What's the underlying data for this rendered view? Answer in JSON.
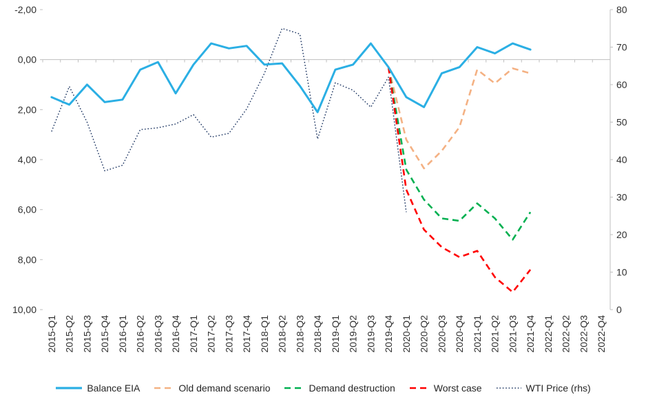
{
  "chart_data": {
    "type": "line",
    "title": "",
    "legend_position": "bottom",
    "grid": "horizontal-zero-line-only",
    "categories": [
      "2015-Q1",
      "2015-Q2",
      "2015-Q3",
      "2015-Q4",
      "2016-Q1",
      "2016-Q2",
      "2016-Q3",
      "2016-Q4",
      "2017-Q1",
      "2017-Q2",
      "2017-Q3",
      "2017-Q4",
      "2018-Q1",
      "2018-Q2",
      "2018-Q3",
      "2018-Q4",
      "2019-Q1",
      "2019-Q2",
      "2019-Q3",
      "2019-Q4",
      "2020-Q1",
      "2020-Q2",
      "2020-Q3",
      "2020-Q4",
      "2021-Q1",
      "2021-Q2",
      "2021-Q3",
      "2021-Q4",
      "2022-Q1",
      "2022-Q2",
      "2022-Q3",
      "2022-Q4"
    ],
    "left_axis": {
      "min": -2,
      "max": 10,
      "inverted": true,
      "gridline_at": 0,
      "tick_values": [
        -2,
        0,
        2,
        4,
        6,
        8,
        10
      ],
      "tick_labels": [
        "-2,00",
        "0,00",
        "2,00",
        "4,00",
        "6,00",
        "8,00",
        "10,00"
      ]
    },
    "right_axis": {
      "min": 0,
      "max": 80,
      "tick_values": [
        80,
        70,
        60,
        50,
        40,
        30,
        20,
        10,
        0
      ],
      "tick_labels": [
        "80",
        "70",
        "60",
        "50",
        "40",
        "30",
        "20",
        "10",
        "0"
      ]
    },
    "series": [
      {
        "name": "Balance EIA",
        "axis": "left",
        "color": "#2BAFE4",
        "style": "solid",
        "width": 3,
        "values": [
          1.5,
          1.8,
          1.0,
          1.7,
          1.6,
          0.4,
          0.1,
          1.35,
          0.2,
          -0.65,
          -0.45,
          -0.55,
          0.2,
          0.15,
          1.05,
          2.1,
          0.4,
          0.2,
          -0.65,
          0.3,
          1.5,
          1.9,
          0.55,
          0.3,
          -0.5,
          -0.25,
          -0.65,
          -0.4,
          null,
          null,
          null,
          null
        ]
      },
      {
        "name": "Old demand scenario",
        "axis": "left",
        "color": "#F4B183",
        "style": "dashed",
        "width": 2.6,
        "values": [
          null,
          null,
          null,
          null,
          null,
          null,
          null,
          null,
          null,
          null,
          null,
          null,
          null,
          null,
          null,
          null,
          null,
          null,
          null,
          0.3,
          3.2,
          4.35,
          3.65,
          2.7,
          0.4,
          0.95,
          0.35,
          0.55,
          null,
          null,
          null,
          null
        ]
      },
      {
        "name": "Demand destruction",
        "axis": "left",
        "color": "#00B050",
        "style": "dashed",
        "width": 2.6,
        "values": [
          null,
          null,
          null,
          null,
          null,
          null,
          null,
          null,
          null,
          null,
          null,
          null,
          null,
          null,
          null,
          null,
          null,
          null,
          null,
          0.3,
          4.4,
          5.6,
          6.35,
          6.45,
          5.75,
          6.35,
          7.2,
          6.1,
          null,
          null,
          null,
          null
        ]
      },
      {
        "name": "Worst case",
        "axis": "left",
        "color": "#FF0000",
        "style": "dashed",
        "width": 2.6,
        "values": [
          null,
          null,
          null,
          null,
          null,
          null,
          null,
          null,
          null,
          null,
          null,
          null,
          null,
          null,
          null,
          null,
          null,
          null,
          null,
          0.3,
          5.2,
          6.8,
          7.5,
          7.9,
          7.65,
          8.7,
          9.3,
          8.4,
          null,
          null,
          null,
          null
        ]
      },
      {
        "name": "WTI Price (rhs)",
        "axis": "right",
        "color": "#203864",
        "style": "dotted",
        "width": 1.5,
        "values": [
          47.5,
          59.5,
          50,
          37,
          38.5,
          48,
          48.5,
          49.5,
          52,
          46,
          47,
          53.5,
          63,
          75,
          73.5,
          45.5,
          60.5,
          58.5,
          54,
          62,
          26,
          null,
          null,
          null,
          null,
          null,
          null,
          null,
          null,
          null,
          null,
          null
        ]
      }
    ]
  },
  "colors": {
    "background": "#FFFFFF",
    "gridline": "#BFBFBF",
    "axis_line": "#BFBFBF",
    "axis_text": "#303030",
    "legend_text": "#262626"
  }
}
